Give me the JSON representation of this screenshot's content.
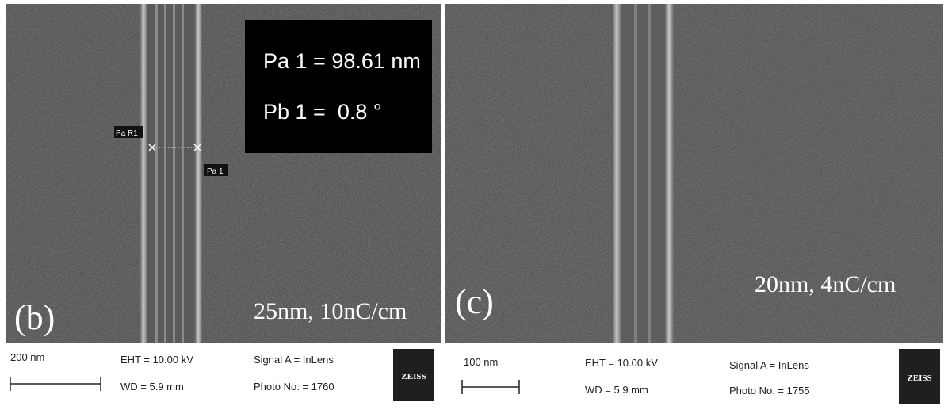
{
  "panels": [
    {
      "label": "(b)",
      "caption": "25nm, 10nC/cm",
      "measurements": [
        "Pa 1 = 98.61 nm",
        "Pb 1 =  0.8 °"
      ],
      "markers": [
        "Pa R1",
        "Pa 1"
      ],
      "info": {
        "scale": "200 nm",
        "eht": "EHT = 10.00 kV",
        "wd": "WD = 5.9 mm",
        "signal": "Signal A = InLens",
        "photo": "Photo No. = 1760",
        "logo": "ZEISS"
      }
    },
    {
      "label": "(c)",
      "caption": "20nm, 4nC/cm",
      "info": {
        "scale": "100 nm",
        "eht": "EHT = 10.00 kV",
        "wd": "WD = 5.9 mm",
        "signal": "Signal A = InLens",
        "photo": "Photo No. = 1755",
        "logo": "ZEISS"
      }
    }
  ]
}
